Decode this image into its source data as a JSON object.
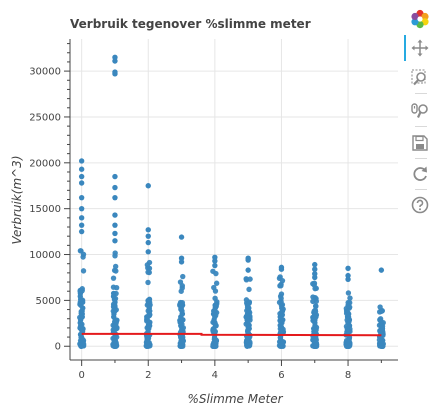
{
  "chart_data": {
    "type": "scatter",
    "title": "Verbruik tegenover %slimme meter",
    "xlabel": "%Slimme Meter",
    "ylabel": "Verbruik(m^3)",
    "xlim": [
      -0.35,
      9.5
    ],
    "ylim": [
      -1500,
      33500
    ],
    "x_ticks": [
      0,
      2,
      4,
      6,
      8
    ],
    "y_ticks": [
      0,
      5000,
      10000,
      15000,
      20000,
      25000,
      30000
    ],
    "grid": true,
    "colors": {
      "points": "#3a87be",
      "trend": "#e41a1c",
      "grid": "#e6e6e6",
      "axis": "#444444"
    },
    "columns": [
      {
        "x": 0,
        "dense_max": 11500,
        "outliers": [
          12500,
          13200,
          14000,
          15000,
          16200,
          17800,
          18500,
          19300,
          20200
        ]
      },
      {
        "x": 1,
        "dense_max": 10800,
        "outliers": [
          11500,
          12300,
          13200,
          14300,
          16200,
          17300,
          18500,
          29700,
          29900,
          31100,
          31500
        ]
      },
      {
        "x": 2,
        "dense_max": 9600,
        "outliers": [
          10300,
          11300,
          12000,
          12700,
          17500
        ]
      },
      {
        "x": 3,
        "dense_max": 8200,
        "outliers": [
          9200,
          9600,
          11900
        ]
      },
      {
        "x": 4,
        "dense_max": 8200,
        "outliers": [
          8800,
          9300,
          9700
        ]
      },
      {
        "x": 5,
        "dense_max": 7700,
        "outliers": [
          8300,
          9400,
          9600
        ]
      },
      {
        "x": 6,
        "dense_max": 8000,
        "outliers": [
          8400,
          8600
        ]
      },
      {
        "x": 7,
        "dense_max": 7000,
        "outliers": [
          7500,
          7900,
          8400,
          8900
        ]
      },
      {
        "x": 8,
        "dense_max": 6700,
        "outliers": [
          7300,
          7700,
          8500
        ]
      },
      {
        "x": 9,
        "dense_max": 4500,
        "outliers": [
          8300
        ]
      }
    ],
    "trend": [
      {
        "x": 0,
        "y": 1350
      },
      {
        "x": 3.6,
        "y": 1350
      },
      {
        "x": 3.6,
        "y": 1250
      },
      {
        "x": 9,
        "y": 1200
      }
    ]
  },
  "toolbar": {
    "tools": [
      {
        "name": "bokeh-logo-icon",
        "active": false
      },
      {
        "name": "pan-icon",
        "active": true
      },
      {
        "name": "box-zoom-icon",
        "active": false
      },
      {
        "name": "wheel-zoom-icon",
        "active": false
      },
      {
        "name": "save-icon",
        "active": false
      },
      {
        "name": "reset-icon",
        "active": false
      },
      {
        "name": "help-icon",
        "active": false
      }
    ]
  }
}
